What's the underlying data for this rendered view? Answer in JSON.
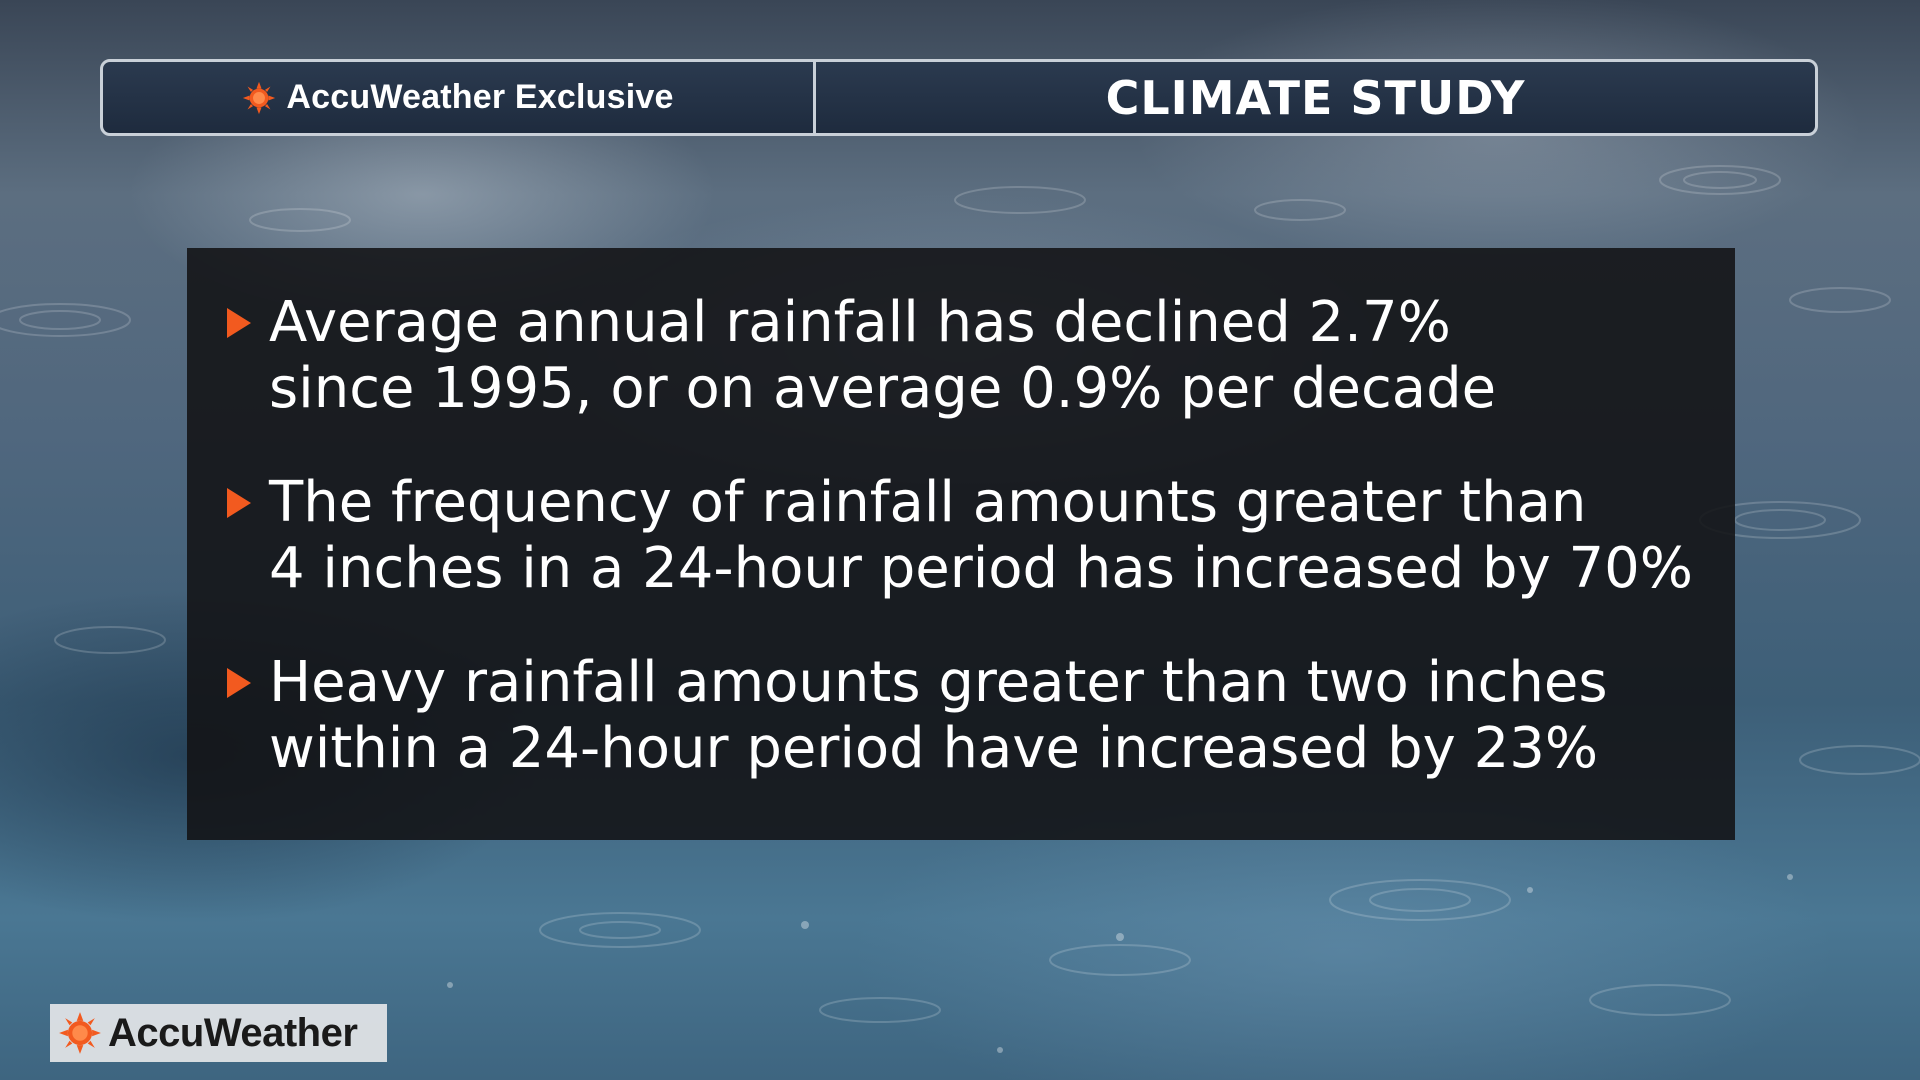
{
  "header": {
    "brand_label": "AccuWeather Exclusive",
    "brand_icon": "sun-icon",
    "title": "CLIMATE STUDY"
  },
  "bullets": [
    {
      "line1": "Average annual rainfall has declined 2.7%",
      "line2": "since 1995, or on average 0.9% per decade"
    },
    {
      "line1": "The frequency of rainfall amounts greater than",
      "line2": "4 inches in a 24-hour period has increased by 70%"
    },
    {
      "line1": "Heavy rainfall amounts greater than two inches",
      "line2": "within a 24-hour period have increased by 23%"
    }
  ],
  "logo": {
    "wordmark": "AccuWeather",
    "icon": "sun-icon"
  },
  "colors": {
    "accent": "#f25a1f",
    "header_bg": "#1e2b3e",
    "panel_bg": "#121214",
    "border": "#c9d0d8"
  }
}
